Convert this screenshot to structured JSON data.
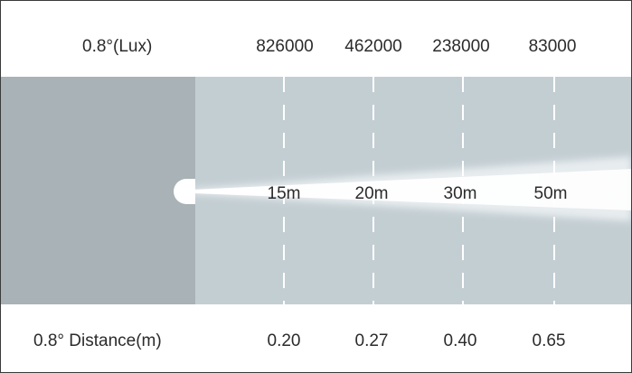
{
  "lux_row": {
    "title": "0.8°(Lux)",
    "values": [
      "826000",
      "462000",
      "238000",
      "83000"
    ]
  },
  "beam": {
    "distances": [
      "15m",
      "20m",
      "30m",
      "50m"
    ]
  },
  "distance_row": {
    "title": "0.8° Distance(m)",
    "values": [
      "0.20",
      "0.27",
      "0.40",
      "0.65"
    ]
  },
  "colors": {
    "band": "#c3ced3",
    "fixture": "#a9b2b6",
    "beam": "#ffffff",
    "text": "#2b2b2b"
  }
}
